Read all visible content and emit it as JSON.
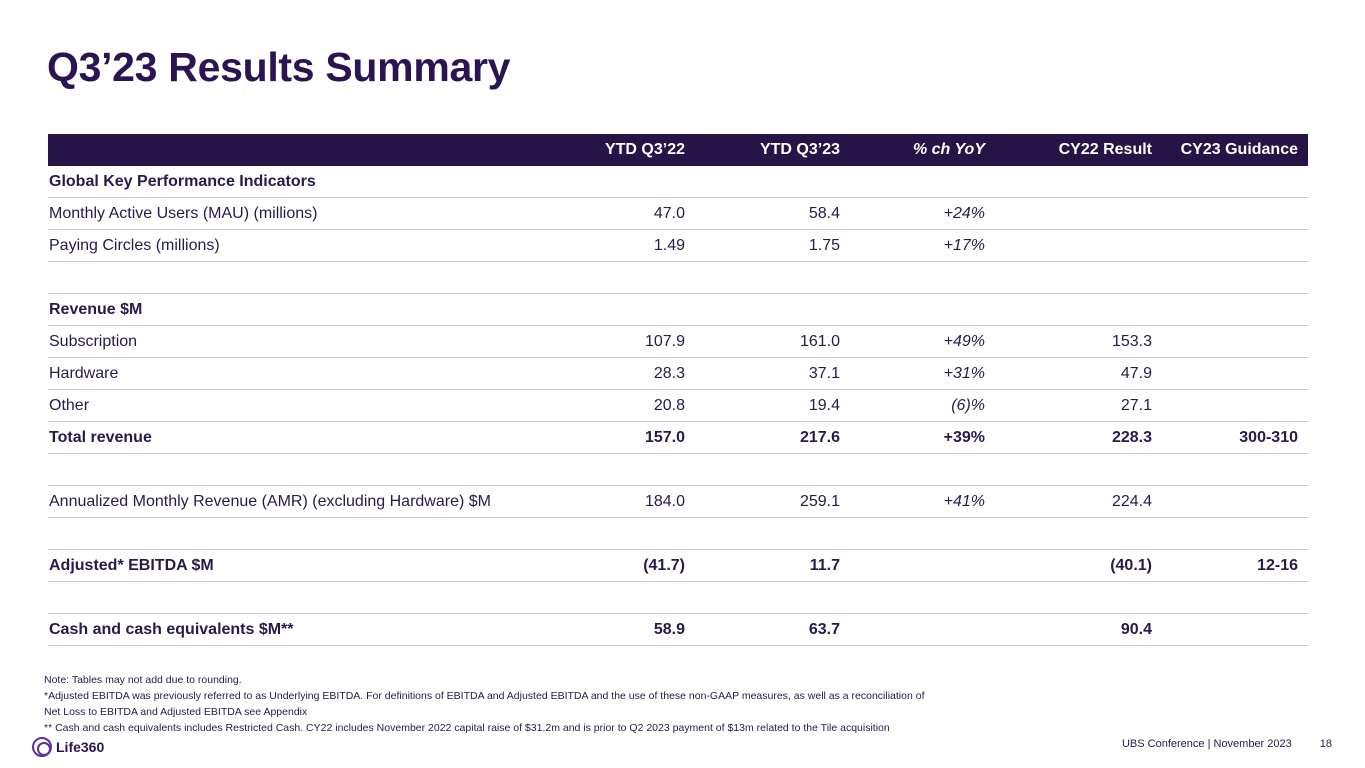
{
  "title": "Q3’23 Results Summary",
  "table": {
    "headers": [
      "",
      "YTD Q3’22",
      "YTD Q3’23",
      "% ch YoY",
      "CY22 Result",
      "CY23 Guidance"
    ],
    "rows": [
      {
        "label": "Global Key Performance Indicators",
        "v1": "",
        "v2": "",
        "v3": "",
        "v4": "",
        "v5": ""
      },
      {
        "label": "Monthly Active Users (MAU) (millions)",
        "v1": "47.0",
        "v2": "58.4",
        "v3": "+24%",
        "v4": "",
        "v5": ""
      },
      {
        "label": "Paying Circles (millions)",
        "v1": "1.49",
        "v2": "1.75",
        "v3": "+17%",
        "v4": "",
        "v5": ""
      },
      {
        "label": "",
        "v1": "",
        "v2": "",
        "v3": "",
        "v4": "",
        "v5": ""
      },
      {
        "label": "Revenue $M",
        "v1": "",
        "v2": "",
        "v3": "",
        "v4": "",
        "v5": ""
      },
      {
        "label": "Subscription",
        "v1": "107.9",
        "v2": "161.0",
        "v3": "+49%",
        "v4": "153.3",
        "v5": ""
      },
      {
        "label": "Hardware",
        "v1": "28.3",
        "v2": "37.1",
        "v3": "+31%",
        "v4": "47.9",
        "v5": ""
      },
      {
        "label": "Other",
        "v1": "20.8",
        "v2": "19.4",
        "v3": "(6)%",
        "v4": "27.1",
        "v5": ""
      },
      {
        "label": "Total revenue",
        "v1": "157.0",
        "v2": "217.6",
        "v3": "+39%",
        "v4": "228.3",
        "v5": "300-310"
      },
      {
        "label": "",
        "v1": "",
        "v2": "",
        "v3": "",
        "v4": "",
        "v5": ""
      },
      {
        "label": "Annualized Monthly Revenue (AMR) (excluding Hardware) $M",
        "v1": "184.0",
        "v2": "259.1",
        "v3": "+41%",
        "v4": "224.4",
        "v5": ""
      },
      {
        "label": "",
        "v1": "",
        "v2": "",
        "v3": "",
        "v4": "",
        "v5": ""
      },
      {
        "label": "Adjusted* EBITDA $M",
        "v1": "(41.7)",
        "v2": "11.7",
        "v3": "",
        "v4": "(40.1)",
        "v5": "12-16"
      },
      {
        "label": "",
        "v1": "",
        "v2": "",
        "v3": "",
        "v4": "",
        "v5": ""
      },
      {
        "label": "Cash and cash equivalents $M**",
        "v1": "58.9",
        "v2": "63.7",
        "v3": "",
        "v4": "90.4",
        "v5": ""
      }
    ]
  },
  "notes": [
    "Note: Tables may not add due to rounding.",
    "*Adjusted EBITDA was previously referred to as Underlying EBITDA. For definitions of EBITDA and Adjusted EBITDA and the use of these non-GAAP measures, as well as a reconciliation of",
    "Net Loss to EBITDA and Adjusted EBITDA see Appendix",
    "** Cash and cash equivalents includes Restricted Cash.  CY22  includes November 2022 capital raise of $31.2m and is prior to Q2 2023 payment of $13m related to the Tile acquisition"
  ],
  "footer": {
    "logo_text": "Life360",
    "event": "UBS Conference  |  November 2023",
    "page": "18"
  }
}
